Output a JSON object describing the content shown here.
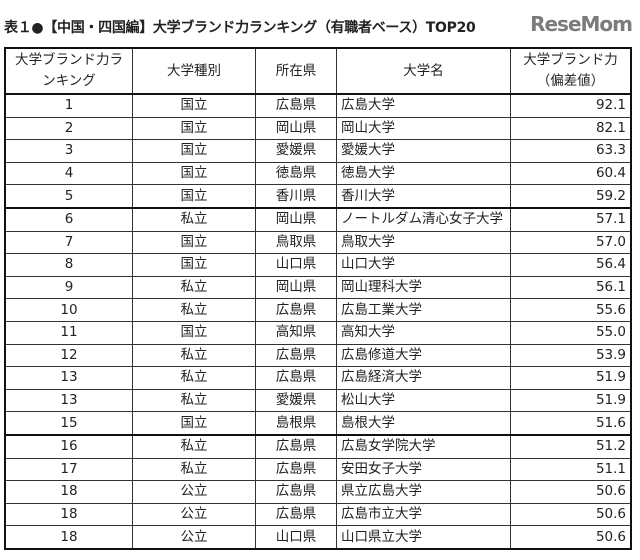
{
  "title": "表１●【中国・四国編】大学ブランド力ランキング（有職者ベース）TOP20",
  "headers": [
    "大学ブランド力ランキング",
    "大学種別",
    "所在県",
    "大学名",
    "大学ブランド力（偏差値）"
  ],
  "rows": [
    [
      "1",
      "国立",
      "広島県",
      "広島大学",
      "92.1"
    ],
    [
      "2",
      "国立",
      "岡山県",
      "岡山大学",
      "82.1"
    ],
    [
      "3",
      "国立",
      "愛媛県",
      "愛媛大学",
      "63.3"
    ],
    [
      "4",
      "国立",
      "徳島県",
      "徳島大学",
      "60.4"
    ],
    [
      "5",
      "国立",
      "香川県",
      "香川大学",
      "59.2"
    ],
    [
      "6",
      "私立",
      "岡山県",
      "ノートルダム清心女子大学",
      "57.1"
    ],
    [
      "7",
      "国立",
      "鳥取県",
      "鳥取大学",
      "57.0"
    ],
    [
      "8",
      "国立",
      "山口県",
      "山口大学",
      "56.4"
    ],
    [
      "9",
      "私立",
      "岡山県",
      "岡山理科大学",
      "56.1"
    ],
    [
      "10",
      "私立",
      "広島県",
      "広島工業大学",
      "55.6"
    ],
    [
      "11",
      "国立",
      "高知県",
      "高知大学",
      "55.0"
    ],
    [
      "12",
      "私立",
      "広島県",
      "広島修道大学",
      "53.9"
    ],
    [
      "13",
      "私立",
      "広島県",
      "広島経済大学",
      "51.9"
    ],
    [
      "13",
      "私立",
      "愛媛県",
      "松山大学",
      "51.9"
    ],
    [
      "15",
      "国立",
      "島根県",
      "島根大学",
      "51.6"
    ],
    [
      "16",
      "私立",
      "広島県",
      "広島女学院大学",
      "51.2"
    ],
    [
      "17",
      "私立",
      "広島県",
      "安田女子大学",
      "51.1"
    ],
    [
      "18",
      "公立",
      "広島県",
      "県立広島大学",
      "50.6"
    ],
    [
      "18",
      "公立",
      "広島県",
      "広島市立大学",
      "50.6"
    ],
    [
      "18",
      "公立",
      "山口県",
      "山口県立大学",
      "50.6"
    ]
  ],
  "watermark": "ReseMom"
}
